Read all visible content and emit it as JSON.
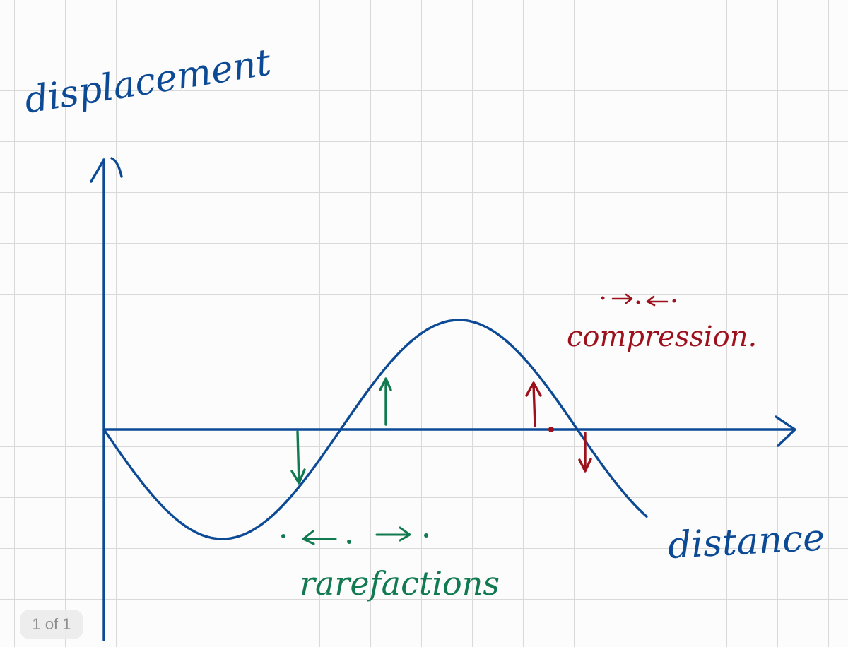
{
  "labels": {
    "y_axis": "displacement",
    "x_axis": "distance",
    "rarefactions": "rarefactions",
    "compression": "compression."
  },
  "page_indicator": "1 of 1",
  "colors": {
    "axes_and_wave": "#0d4a96",
    "rarefaction": "#127a50",
    "compression": "#9c111b",
    "grid": "#d9d9d9"
  },
  "wave": {
    "shape": "inverted sine",
    "starts_at": "origin, moving downward"
  }
}
